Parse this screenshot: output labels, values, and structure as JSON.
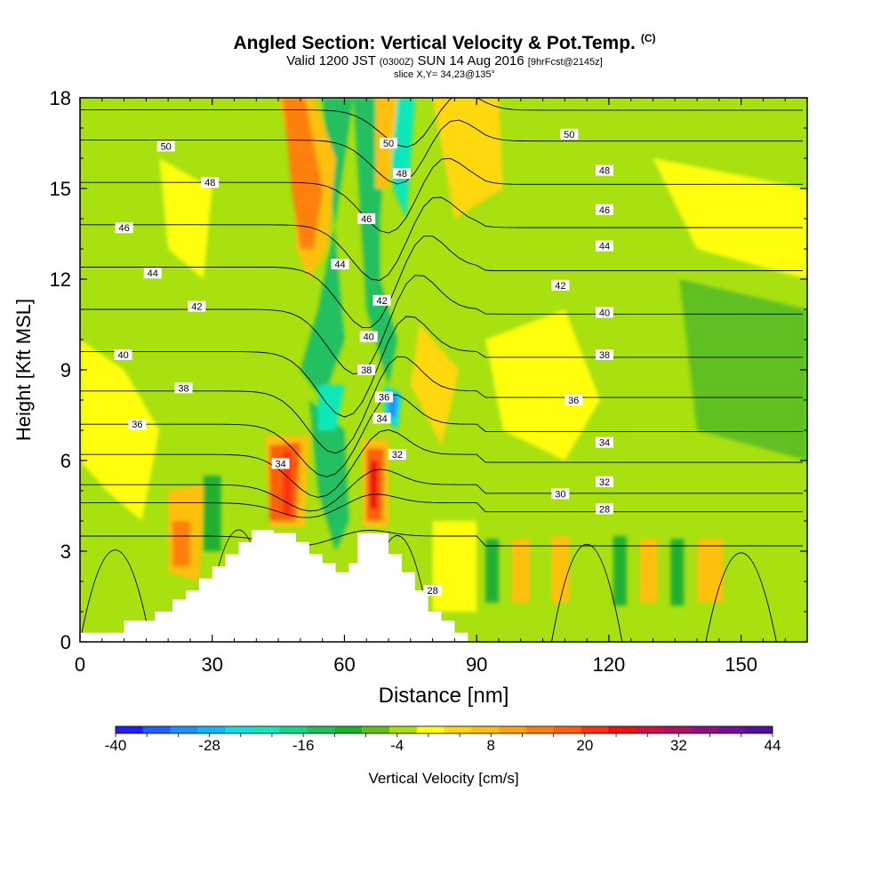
{
  "title": {
    "main": "Angled Section: Vertical Velocity & Pot.Temp.",
    "copyright": "(C)",
    "valid_a": "Valid 1200 JST",
    "valid_utc": "(0300Z)",
    "valid_b": "SUN 14 Aug 2016",
    "fcst": "[9hrFcst@2145z]",
    "slice": "slice X,Y= 34,23@135°"
  },
  "chart_data": {
    "type": "heatmap",
    "xlabel": "Distance [nm]",
    "ylabel": "Height [Kft MSL]",
    "xlim": [
      0,
      165
    ],
    "ylim": [
      0,
      18
    ],
    "x_ticks": [
      0,
      30,
      60,
      90,
      120,
      150
    ],
    "y_ticks": [
      0,
      3,
      6,
      9,
      12,
      15,
      18
    ],
    "colorbar": {
      "label": "Vertical Velocity [cm/s]",
      "ticks": [
        -40,
        -28,
        -16,
        -4,
        8,
        20,
        32,
        44
      ],
      "range": [
        -40,
        44
      ],
      "step": 4,
      "colors": [
        "#1f1fff",
        "#1f5fff",
        "#1f8fff",
        "#10b7f8",
        "#10dfdf",
        "#10e8b8",
        "#10d888",
        "#20c060",
        "#20b030",
        "#60c020",
        "#a8e010",
        "#ffff10",
        "#ffd810",
        "#ffbf10",
        "#ffa010",
        "#ff8010",
        "#ff6010",
        "#ff3010",
        "#f01010",
        "#d01040",
        "#b01060",
        "#901080",
        "#7010a0",
        "#5010a0"
      ]
    },
    "terrain": [
      [
        0,
        0.3
      ],
      [
        10,
        0.3
      ],
      [
        10,
        0.7
      ],
      [
        17,
        0.7
      ],
      [
        17,
        1.0
      ],
      [
        21,
        1.0
      ],
      [
        21,
        1.4
      ],
      [
        24,
        1.4
      ],
      [
        24,
        1.7
      ],
      [
        27,
        1.7
      ],
      [
        27,
        2.1
      ],
      [
        30,
        2.1
      ],
      [
        30,
        2.5
      ],
      [
        33,
        2.5
      ],
      [
        33,
        2.9
      ],
      [
        36,
        2.9
      ],
      [
        36,
        3.3
      ],
      [
        39,
        3.3
      ],
      [
        39,
        3.7
      ],
      [
        44,
        3.7
      ],
      [
        44,
        3.6
      ],
      [
        49,
        3.6
      ],
      [
        49,
        3.3
      ],
      [
        52,
        3.3
      ],
      [
        52,
        2.9
      ],
      [
        55,
        2.9
      ],
      [
        55,
        2.6
      ],
      [
        58,
        2.6
      ],
      [
        58,
        2.3
      ],
      [
        61,
        2.3
      ],
      [
        61,
        2.6
      ],
      [
        63,
        2.6
      ],
      [
        63,
        3.6
      ],
      [
        70,
        3.6
      ],
      [
        70,
        2.9
      ],
      [
        73,
        2.9
      ],
      [
        73,
        2.3
      ],
      [
        76,
        2.3
      ],
      [
        76,
        1.7
      ],
      [
        79,
        1.7
      ],
      [
        79,
        1.0
      ],
      [
        82,
        1.0
      ],
      [
        82,
        0.7
      ],
      [
        85,
        0.7
      ],
      [
        85,
        0.3
      ],
      [
        88,
        0.3
      ],
      [
        88,
        0.0
      ]
    ],
    "contours": {
      "variable": "potential temperature",
      "levels": [
        28,
        30,
        32,
        34,
        36,
        38,
        40,
        42,
        44,
        46,
        48,
        50
      ]
    },
    "contour_labels": [
      {
        "text": "50",
        "x": 19.5,
        "y": 16.4
      },
      {
        "text": "48",
        "x": 29.5,
        "y": 15.2
      },
      {
        "text": "46",
        "x": 10,
        "y": 13.7
      },
      {
        "text": "44",
        "x": 16.5,
        "y": 12.2
      },
      {
        "text": "42",
        "x": 26.5,
        "y": 11.1
      },
      {
        "text": "40",
        "x": 9.8,
        "y": 9.5
      },
      {
        "text": "38",
        "x": 23.5,
        "y": 8.4
      },
      {
        "text": "36",
        "x": 13,
        "y": 7.2
      },
      {
        "text": "34",
        "x": 45.5,
        "y": 5.9
      },
      {
        "text": "50",
        "x": 70,
        "y": 16.5
      },
      {
        "text": "48",
        "x": 73,
        "y": 15.5
      },
      {
        "text": "46",
        "x": 65,
        "y": 14.0
      },
      {
        "text": "44",
        "x": 59,
        "y": 12.5
      },
      {
        "text": "42",
        "x": 68.5,
        "y": 11.3
      },
      {
        "text": "40",
        "x": 65.5,
        "y": 10.1
      },
      {
        "text": "38",
        "x": 65,
        "y": 9.0
      },
      {
        "text": "36",
        "x": 69,
        "y": 8.1
      },
      {
        "text": "34",
        "x": 68.5,
        "y": 7.4
      },
      {
        "text": "32",
        "x": 72,
        "y": 6.2
      },
      {
        "text": "28",
        "x": 80,
        "y": 1.7
      },
      {
        "text": "50",
        "x": 111,
        "y": 16.8
      },
      {
        "text": "48",
        "x": 119,
        "y": 15.6
      },
      {
        "text": "46",
        "x": 119,
        "y": 14.3
      },
      {
        "text": "44",
        "x": 119,
        "y": 13.1
      },
      {
        "text": "42",
        "x": 109,
        "y": 11.8
      },
      {
        "text": "40",
        "x": 119,
        "y": 10.9
      },
      {
        "text": "38",
        "x": 119,
        "y": 9.5
      },
      {
        "text": "36",
        "x": 112,
        "y": 8.0
      },
      {
        "text": "34",
        "x": 119,
        "y": 6.6
      },
      {
        "text": "32",
        "x": 119,
        "y": 5.3
      },
      {
        "text": "30",
        "x": 109,
        "y": 4.9
      },
      {
        "text": "28",
        "x": 119,
        "y": 4.4
      }
    ]
  }
}
